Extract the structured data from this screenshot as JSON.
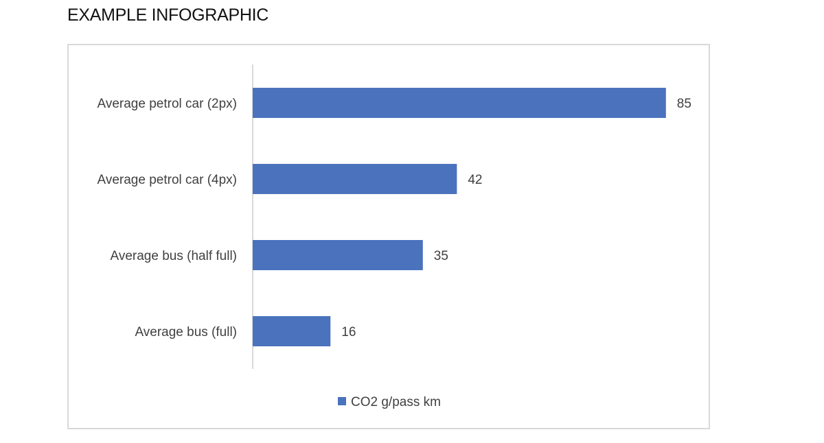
{
  "page": {
    "title": "EXAMPLE INFOGRAPHIC"
  },
  "chart_data": {
    "type": "bar",
    "orientation": "horizontal",
    "categories": [
      "Average petrol car (2px)",
      "Average petrol car (4px)",
      "Average bus (half full)",
      "Average bus (full)"
    ],
    "series": [
      {
        "name": "CO2 g/pass km",
        "values": [
          85,
          42,
          35,
          16
        ],
        "color": "#4a72bd"
      }
    ],
    "xlim": [
      0,
      100
    ],
    "data_labels": [
      "85",
      "42",
      "35",
      "16"
    ],
    "grid": false,
    "legend_position": "bottom"
  }
}
